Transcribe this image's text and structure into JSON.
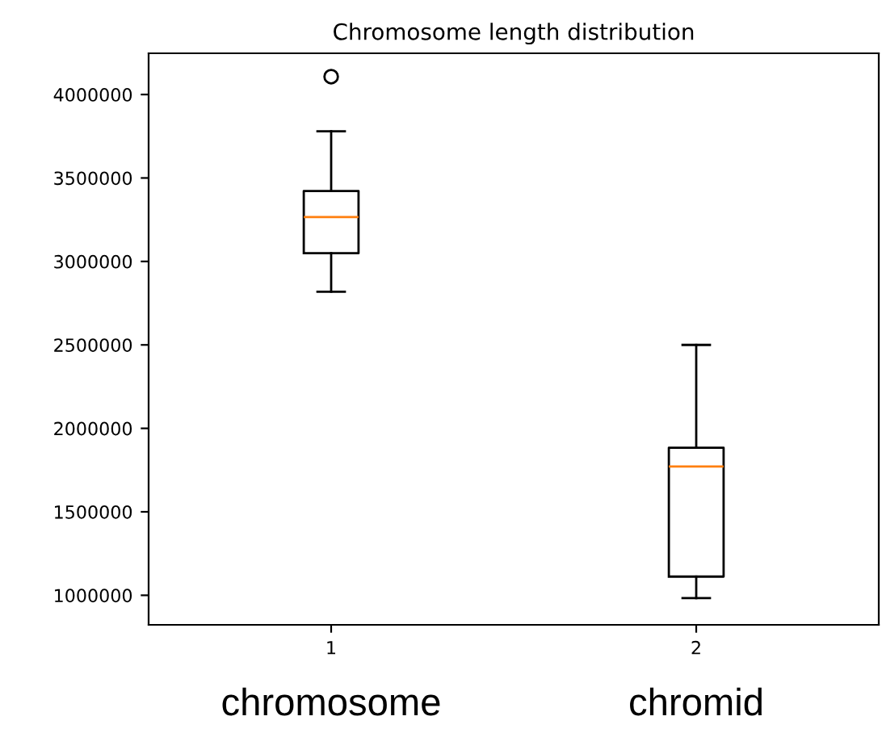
{
  "chart_data": {
    "type": "box",
    "title": "Chromosome length distribution",
    "categories": [
      "1",
      "2"
    ],
    "boxes": [
      {
        "low": 2819000,
        "q1": 3049000,
        "median": 3266000,
        "q3": 3422000,
        "high": 3780000,
        "outliers": [
          4107000
        ]
      },
      {
        "low": 983000,
        "q1": 1112000,
        "median": 1772000,
        "q3": 1884000,
        "high": 2500000
      }
    ],
    "ylim": [
      823000,
      4247000
    ],
    "yticks": [
      1000000,
      1500000,
      2000000,
      2500000,
      3000000,
      3500000,
      4000000
    ],
    "annotations": [
      "chromosome",
      "chromid"
    ],
    "grid": false,
    "legend": false
  }
}
